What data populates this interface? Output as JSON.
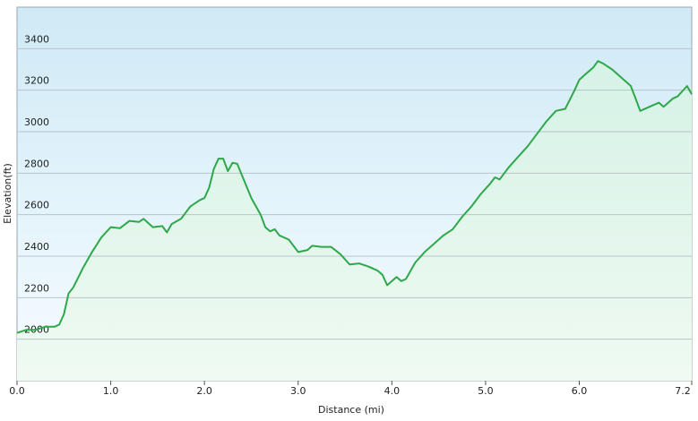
{
  "chart_data": {
    "type": "area",
    "x_label": "Distance  (mi)",
    "y_label": "Elevation(ft)",
    "x": [
      0,
      0.1,
      0.2,
      0.3,
      0.4,
      0.45,
      0.5,
      0.55,
      0.6,
      0.7,
      0.8,
      0.9,
      1.0,
      1.1,
      1.2,
      1.3,
      1.35,
      1.45,
      1.55,
      1.6,
      1.65,
      1.75,
      1.85,
      1.95,
      2.0,
      2.05,
      2.1,
      2.15,
      2.2,
      2.25,
      2.3,
      2.35,
      2.4,
      2.5,
      2.6,
      2.65,
      2.7,
      2.75,
      2.8,
      2.9,
      3.0,
      3.1,
      3.15,
      3.25,
      3.35,
      3.45,
      3.55,
      3.65,
      3.75,
      3.85,
      3.9,
      3.95,
      4.05,
      4.1,
      4.15,
      4.25,
      4.35,
      4.45,
      4.55,
      4.65,
      4.75,
      4.85,
      4.95,
      5.05,
      5.1,
      5.15,
      5.25,
      5.35,
      5.45,
      5.55,
      5.65,
      5.75,
      5.85,
      5.95,
      6.0,
      6.05,
      6.15,
      6.2,
      6.25,
      6.35,
      6.45,
      6.55,
      6.6,
      6.65,
      6.75,
      6.85,
      6.9,
      7.0,
      7.05,
      7.15,
      7.2
    ],
    "values": [
      2030,
      2045,
      2045,
      2060,
      2060,
      2070,
      2120,
      2220,
      2250,
      2340,
      2420,
      2490,
      2540,
      2535,
      2570,
      2565,
      2580,
      2540,
      2545,
      2515,
      2555,
      2580,
      2640,
      2670,
      2680,
      2730,
      2820,
      2870,
      2870,
      2810,
      2850,
      2845,
      2790,
      2680,
      2600,
      2540,
      2520,
      2530,
      2500,
      2480,
      2420,
      2430,
      2450,
      2445,
      2445,
      2410,
      2360,
      2365,
      2350,
      2330,
      2310,
      2260,
      2300,
      2280,
      2290,
      2370,
      2420,
      2460,
      2500,
      2530,
      2590,
      2640,
      2700,
      2750,
      2780,
      2770,
      2830,
      2880,
      2930,
      2990,
      3050,
      3100,
      3110,
      3200,
      3250,
      3270,
      3310,
      3340,
      3330,
      3300,
      3260,
      3220,
      3160,
      3100,
      3120,
      3140,
      3120,
      3160,
      3170,
      3220,
      3180
    ],
    "color": "#2ea84a",
    "xlim": [
      0,
      7.2
    ],
    "ylim": [
      1800,
      3600
    ],
    "xticks": [
      {
        "value": 0,
        "label": "0.0"
      },
      {
        "value": 1,
        "label": "1.0"
      },
      {
        "value": 2,
        "label": "2.0"
      },
      {
        "value": 3,
        "label": "3.0"
      },
      {
        "value": 4,
        "label": "4.0"
      },
      {
        "value": 5,
        "label": "5.0"
      },
      {
        "value": 6,
        "label": "6.0"
      },
      {
        "value": 7.2,
        "label": "7.2"
      }
    ],
    "yticks": [
      2000,
      2200,
      2400,
      2600,
      2800,
      3000,
      3200,
      3400
    ],
    "grid": true
  }
}
